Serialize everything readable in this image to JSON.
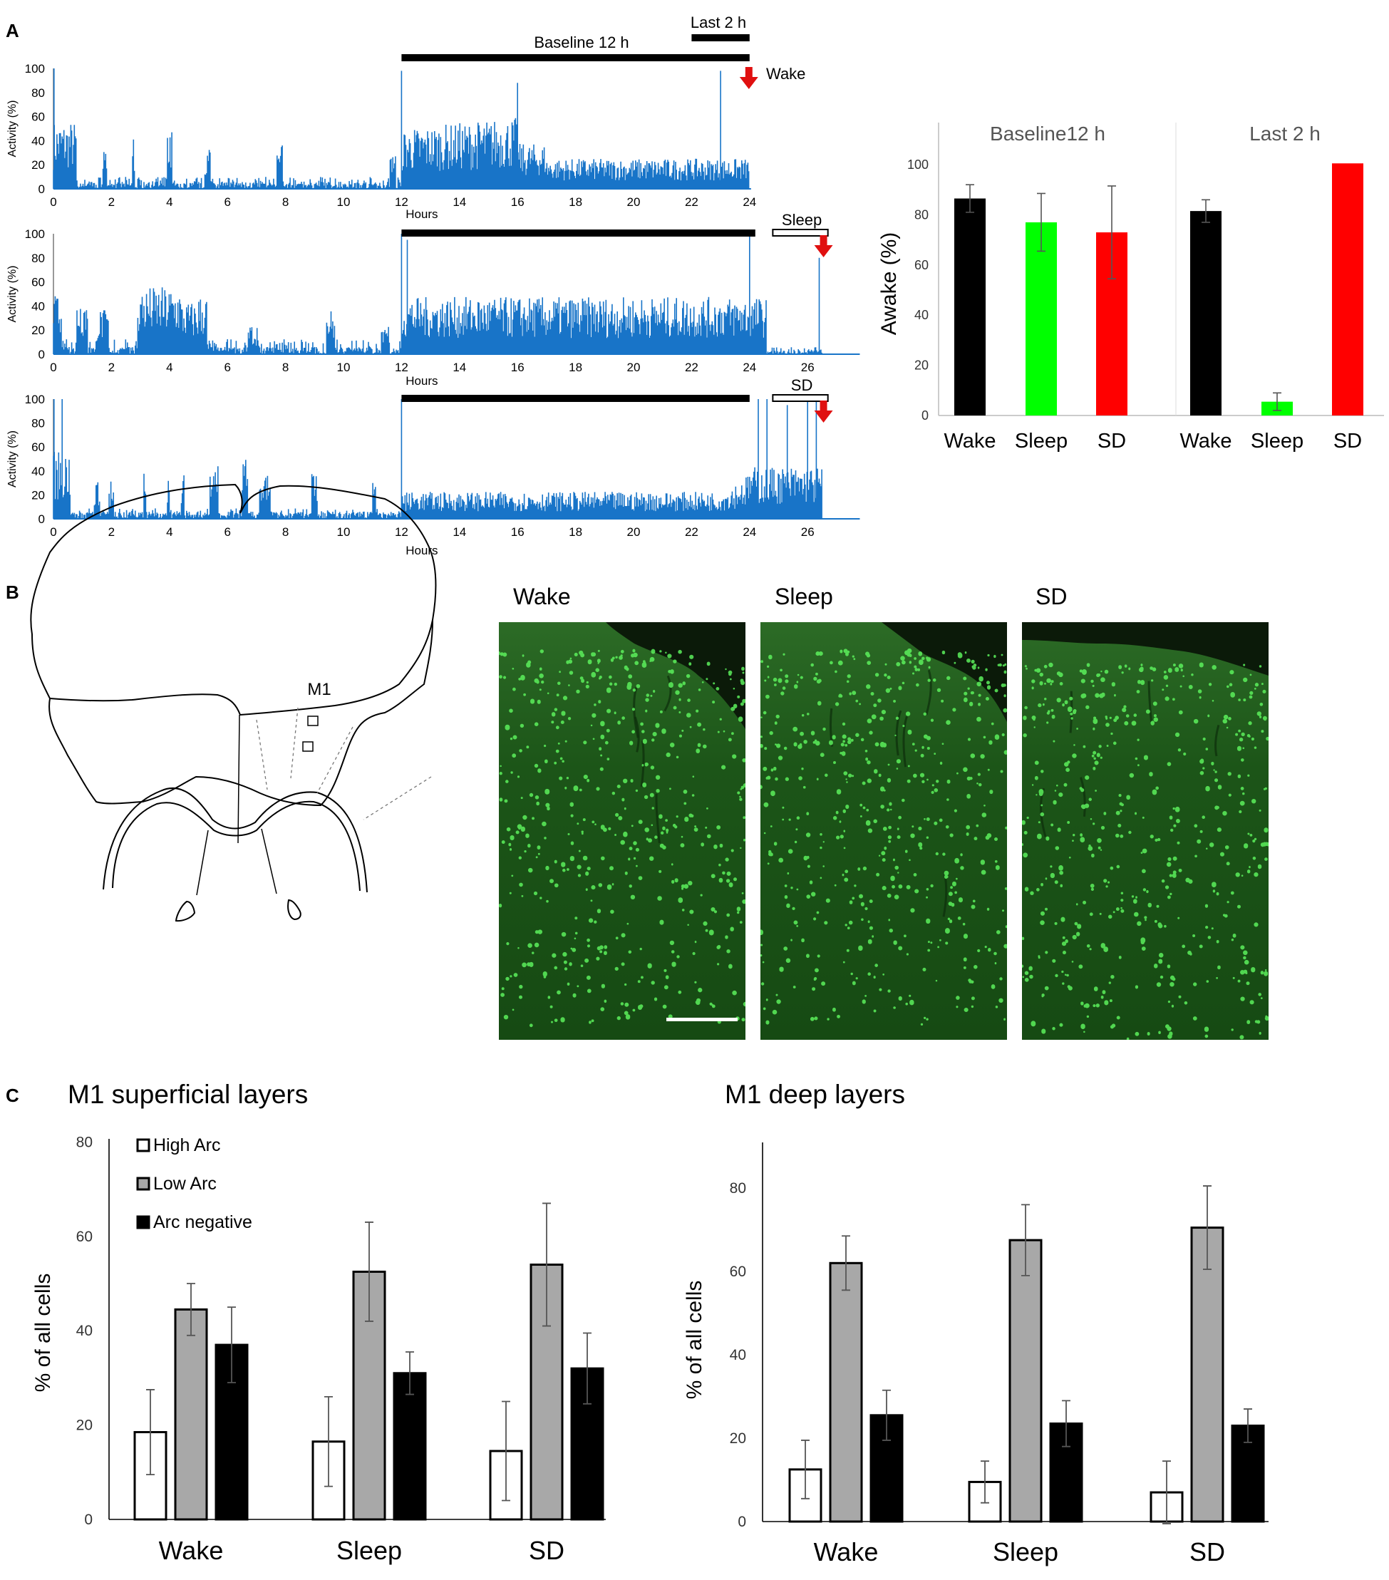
{
  "panel_letters": [
    "A",
    "B",
    "C"
  ],
  "panel_a": {
    "x_ticks": [
      0,
      2,
      4,
      6,
      8,
      10,
      12,
      14,
      16,
      18,
      20,
      22,
      24,
      26
    ],
    "y_ticks": [
      0,
      20,
      40,
      60,
      80,
      100
    ],
    "y_label": "Activity (%)",
    "x_label": "Hours",
    "baseline_label": "Baseline 12 h",
    "last_label": "Last 2 h",
    "rows": [
      {
        "tag": "Wake",
        "tag_boxed": false,
        "end_hour": 24,
        "baseline": [
          12,
          24
        ],
        "marker_hour": 24,
        "trace": "wake"
      },
      {
        "tag": "Sleep",
        "tag_boxed": true,
        "end_hour": 26.5,
        "baseline": [
          12,
          24
        ],
        "marker_hour": 26.5,
        "trace": "sleep"
      },
      {
        "tag": "SD",
        "tag_boxed": true,
        "end_hour": 26.5,
        "baseline": [
          12,
          24
        ],
        "marker_hour": 26.5,
        "trace": "sd"
      }
    ],
    "colors": {
      "trace": "#1874c8",
      "arrow": "#e01010"
    }
  },
  "panel_b": {
    "region_label": "M1",
    "image_titles": [
      "Wake",
      "Sleep",
      "SD"
    ]
  },
  "colors": {
    "wake": "#000000",
    "sleep": "#00ff00",
    "sd": "#ff0000",
    "low_arc": "#a8a8a8"
  },
  "chart_data": [
    {
      "type": "bar",
      "title": "",
      "groups": [
        "Baseline12 h",
        "Last 2 h"
      ],
      "categories": [
        "Wake",
        "Sleep",
        "SD"
      ],
      "ylabel": "Awake (%)",
      "ylim": [
        0,
        110
      ],
      "yticks": [
        0,
        20,
        40,
        60,
        80,
        100
      ],
      "series": [
        {
          "group": "Baseline12 h",
          "values": [
            86.5,
            77,
            73
          ],
          "errors": [
            5.5,
            11.5,
            18.5
          ]
        },
        {
          "group": "Last 2 h",
          "values": [
            81.5,
            5.5,
            100.5
          ],
          "errors": [
            4.5,
            3.5,
            0
          ]
        }
      ]
    },
    {
      "type": "bar",
      "title": "M1 superficial layers",
      "categories": [
        "Wake",
        "Sleep",
        "SD"
      ],
      "ylabel": "% of all cells",
      "ylim": [
        0,
        80
      ],
      "yticks": [
        0,
        20,
        40,
        60,
        80
      ],
      "legend": "top-left",
      "series": [
        {
          "name": "High Arc",
          "values": [
            18.5,
            16.5,
            14.5
          ],
          "errors": [
            9,
            9.5,
            10.5
          ]
        },
        {
          "name": "Low Arc",
          "values": [
            44.5,
            52.5,
            54
          ],
          "errors": [
            5.5,
            10.5,
            13
          ]
        },
        {
          "name": "Arc negative",
          "values": [
            37,
            31,
            32
          ],
          "errors": [
            8,
            4.5,
            7.5
          ]
        }
      ]
    },
    {
      "type": "bar",
      "title": "M1 deep layers",
      "categories": [
        "Wake",
        "Sleep",
        "SD"
      ],
      "ylabel": "% of all cells",
      "ylim": [
        0,
        90
      ],
      "yticks": [
        0,
        20,
        40,
        60,
        80
      ],
      "series": [
        {
          "name": "High Arc",
          "values": [
            12.5,
            9.5,
            7
          ],
          "errors": [
            7,
            5,
            7.5
          ]
        },
        {
          "name": "Low Arc",
          "values": [
            62,
            67.5,
            70.5
          ],
          "errors": [
            6.5,
            8.5,
            10
          ]
        },
        {
          "name": "Arc negative",
          "values": [
            25.5,
            23.5,
            23
          ],
          "errors": [
            6,
            5.5,
            4
          ]
        }
      ]
    }
  ]
}
